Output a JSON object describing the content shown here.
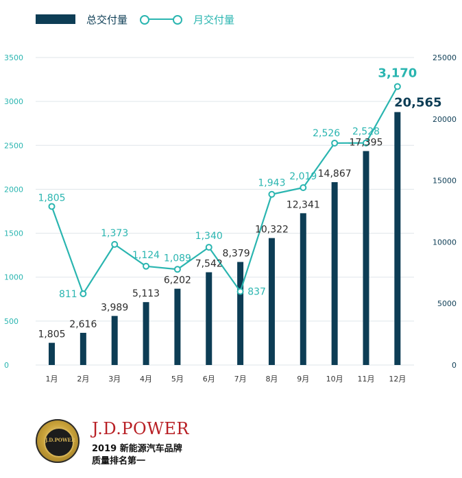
{
  "legend": {
    "bar_label": "总交付量",
    "line_label": "月交付量"
  },
  "colors": {
    "bar": "#0d3d55",
    "line": "#2ab5b0",
    "grid": "#dfe6ea",
    "label_dark": "#2b2b2b"
  },
  "chart_data": {
    "type": "bar",
    "categories": [
      "1月",
      "2月",
      "3月",
      "4月",
      "5月",
      "6月",
      "7月",
      "8月",
      "9月",
      "10月",
      "11月",
      "12月"
    ],
    "series": [
      {
        "name": "总交付量",
        "type": "bar",
        "axis": "right",
        "values": [
          1805,
          2616,
          3989,
          5113,
          6202,
          7542,
          8379,
          10322,
          12341,
          14867,
          17395,
          20565
        ],
        "labels": [
          "1,805",
          "2,616",
          "3,989",
          "5,113",
          "6,202",
          "7,542",
          "8,379",
          "10,322",
          "12,341",
          "14,867",
          "17,395",
          "20,565"
        ]
      },
      {
        "name": "月交付量",
        "type": "line",
        "axis": "left",
        "values": [
          1805,
          811,
          1373,
          1124,
          1089,
          1340,
          837,
          1943,
          2019,
          2526,
          2528,
          3170
        ],
        "labels": [
          "1,805",
          "811",
          "1,373",
          "1,124",
          "1,089",
          "1,340",
          "837",
          "1,943",
          "2,019",
          "2,526",
          "2,528",
          "3,170"
        ]
      }
    ],
    "y_left": {
      "min": 0,
      "max": 3500,
      "ticks": [
        0,
        500,
        1000,
        1500,
        2000,
        2500,
        3000,
        3500
      ],
      "tick_labels": [
        "0",
        "500",
        "1000",
        "1500",
        "2000",
        "2500",
        "3000",
        "3500"
      ]
    },
    "y_right": {
      "min": 0,
      "max": 25000,
      "ticks": [
        0,
        5000,
        10000,
        15000,
        20000,
        25000
      ],
      "tick_labels": [
        "0",
        "5000",
        "10000",
        "15000",
        "20000",
        "25000"
      ]
    },
    "grid": true,
    "legend_position": "top-left",
    "xlabel": "",
    "ylabel": ""
  },
  "brand": {
    "name": "J.D.POWER",
    "line1": "2019 新能源汽车品牌",
    "line2": "质量排名第一",
    "seal_text": "J.D.POWER"
  }
}
